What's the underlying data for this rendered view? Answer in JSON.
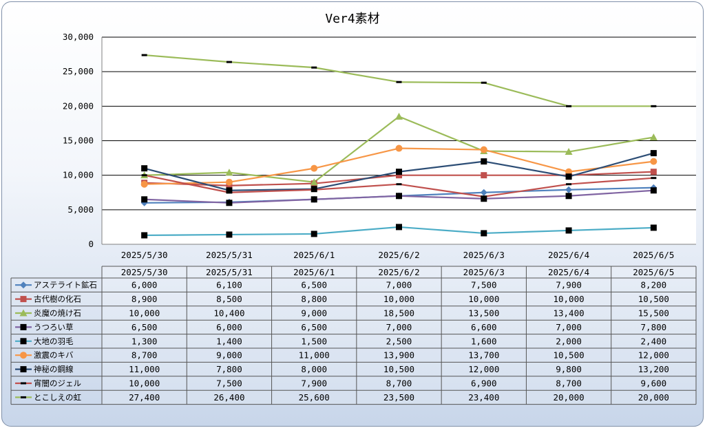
{
  "chart_data": {
    "type": "line",
    "title": "Ver4素材",
    "categories": [
      "2025/5/30",
      "2025/5/31",
      "2025/6/1",
      "2025/6/2",
      "2025/6/3",
      "2025/6/4",
      "2025/6/5"
    ],
    "ylim": [
      0,
      30000
    ],
    "yticks": [
      0,
      5000,
      10000,
      15000,
      20000,
      25000,
      30000
    ],
    "ytick_labels": [
      "0",
      "5,000",
      "10,000",
      "15,000",
      "20,000",
      "25,000",
      "30,000"
    ],
    "grid": true,
    "legend": "data-table-below",
    "series": [
      {
        "name": "アステライト鉱石",
        "color": "#4f81bd",
        "marker": "diamond",
        "values": [
          6000,
          6100,
          6500,
          7000,
          7500,
          7900,
          8200
        ],
        "labels": [
          "6,000",
          "6,100",
          "6,500",
          "7,000",
          "7,500",
          "7,900",
          "8,200"
        ]
      },
      {
        "name": "古代樹の化石",
        "color": "#c0504d",
        "marker": "square",
        "values": [
          8900,
          8500,
          8800,
          10000,
          10000,
          10000,
          10500
        ],
        "labels": [
          "8,900",
          "8,500",
          "8,800",
          "10,000",
          "10,000",
          "10,000",
          "10,500"
        ]
      },
      {
        "name": "炎魔の焼け石",
        "color": "#9bbb59",
        "marker": "triangle",
        "values": [
          10000,
          10400,
          9000,
          18500,
          13500,
          13400,
          15500
        ],
        "labels": [
          "10,000",
          "10,400",
          "9,000",
          "18,500",
          "13,500",
          "13,400",
          "15,500"
        ]
      },
      {
        "name": "うつろい草",
        "color": "#8064a2",
        "marker": "blacksquare",
        "values": [
          6500,
          6000,
          6500,
          7000,
          6600,
          7000,
          7800
        ],
        "labels": [
          "6,500",
          "6,000",
          "6,500",
          "7,000",
          "6,600",
          "7,000",
          "7,800"
        ]
      },
      {
        "name": "大地の羽毛",
        "color": "#4bacc6",
        "marker": "blacksquare",
        "values": [
          1300,
          1400,
          1500,
          2500,
          1600,
          2000,
          2400
        ],
        "labels": [
          "1,300",
          "1,400",
          "1,500",
          "2,500",
          "1,600",
          "2,000",
          "2,400"
        ]
      },
      {
        "name": "激震のキバ",
        "color": "#f79646",
        "marker": "circle",
        "values": [
          8700,
          9000,
          11000,
          13900,
          13700,
          10500,
          12000
        ],
        "labels": [
          "8,700",
          "9,000",
          "11,000",
          "13,900",
          "13,700",
          "10,500",
          "12,000"
        ]
      },
      {
        "name": "神秘の鋼線",
        "color": "#2c4d75",
        "marker": "blacksquare",
        "values": [
          11000,
          7800,
          8000,
          10500,
          12000,
          9800,
          13200
        ],
        "labels": [
          "11,000",
          "7,800",
          "8,000",
          "10,500",
          "12,000",
          "9,800",
          "13,200"
        ]
      },
      {
        "name": "宵闇のジェル",
        "color": "#c0504d",
        "marker": "dash",
        "values": [
          10000,
          7500,
          7900,
          8700,
          6900,
          8700,
          9600
        ],
        "labels": [
          "10,000",
          "7,500",
          "7,900",
          "8,700",
          "6,900",
          "8,700",
          "9,600"
        ]
      },
      {
        "name": "とこしえの虹",
        "color": "#9bbb59",
        "marker": "dash",
        "values": [
          27400,
          26400,
          25600,
          23500,
          23400,
          20000,
          20000
        ],
        "labels": [
          "27,400",
          "26,400",
          "25,600",
          "23,500",
          "23,400",
          "20,000",
          "20,000"
        ]
      }
    ]
  }
}
